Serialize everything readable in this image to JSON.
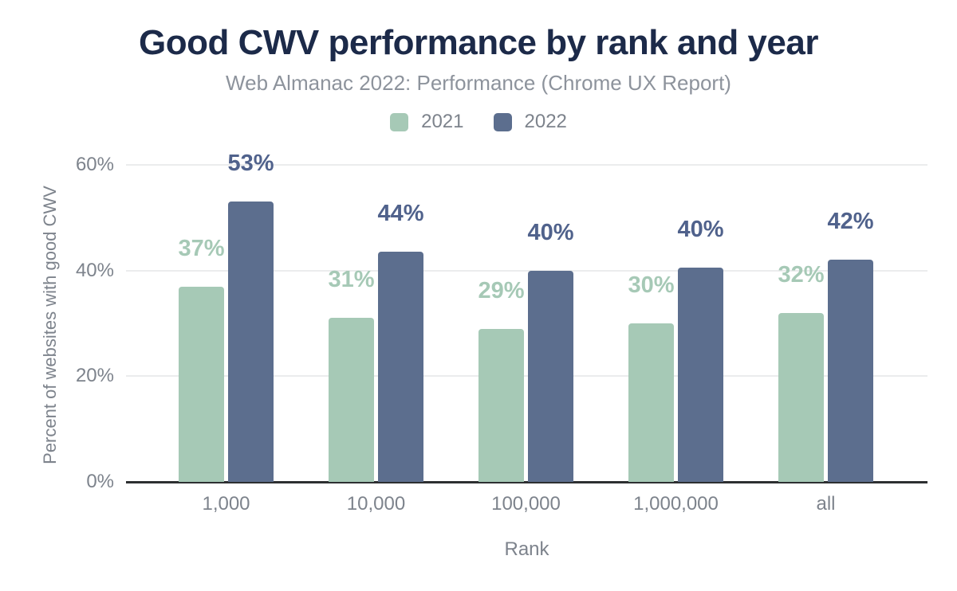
{
  "header": {
    "title": "Good CWV performance by rank and year",
    "subtitle": "Web Almanac 2022: Performance (Chrome UX Report)"
  },
  "colors": {
    "title_color": "#1c2a49",
    "subtitle_color": "#8d939c",
    "axis_text_color": "#7d838c",
    "gridline_color": "#ebeced",
    "axis_line_color": "#2d2f31",
    "series_2021_color": "#a6c9b6",
    "series_2022_color": "#5c6e8e"
  },
  "chart_data": {
    "type": "bar",
    "title": "Good CWV performance by rank and year",
    "subtitle": "Web Almanac 2022: Performance (Chrome UX Report)",
    "xlabel": "Rank",
    "ylabel": "Percent of websites with good CWV",
    "categories": [
      "1,000",
      "10,000",
      "100,000",
      "1,000,000",
      "all"
    ],
    "series": [
      {
        "name": "2021",
        "color": "#a6c9b6",
        "label_color": "#a6c9b6",
        "values": [
          37,
          31,
          29,
          30,
          32
        ],
        "labels": [
          "37%",
          "31%",
          "29%",
          "30%",
          "32%"
        ]
      },
      {
        "name": "2022",
        "color": "#5c6e8e",
        "label_color": "#50628c",
        "values": [
          53,
          43.5,
          40,
          40.5,
          42
        ],
        "labels": [
          "53%",
          "44%",
          "40%",
          "40%",
          "42%"
        ]
      }
    ],
    "ylim": [
      0,
      60
    ],
    "yticks": [
      {
        "label": "0%",
        "value": 0
      },
      {
        "label": "20%",
        "value": 20
      },
      {
        "label": "40%",
        "value": 40
      },
      {
        "label": "60%",
        "value": 60
      }
    ],
    "grid": true,
    "legend_position": "top"
  }
}
